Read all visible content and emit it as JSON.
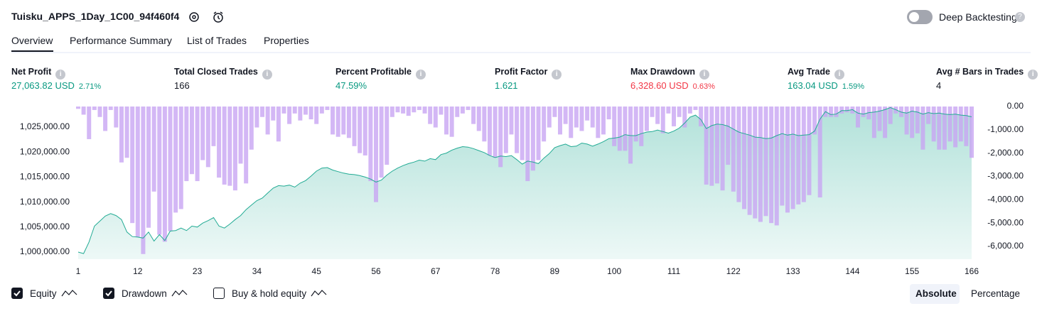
{
  "header": {
    "title": "Tuisku_APPS_1Day_1C00_94f460f4",
    "deep_backtesting": "Deep Backtesting"
  },
  "tabs": [
    "Overview",
    "Performance Summary",
    "List of Trades",
    "Properties"
  ],
  "stats": [
    {
      "label": "Net Profit",
      "value": "27,063.82 USD",
      "percent": "2.71%",
      "color": "#089981"
    },
    {
      "label": "Total Closed Trades",
      "value": "166",
      "color": "#131722"
    },
    {
      "label": "Percent Profitable",
      "value": "47.59%",
      "color": "#089981"
    },
    {
      "label": "Profit Factor",
      "value": "1.621",
      "color": "#089981"
    },
    {
      "label": "Max Drawdown",
      "value": "6,328.60 USD",
      "percent": "0.63%",
      "color": "#f23645"
    },
    {
      "label": "Avg Trade",
      "value": "163.04 USD",
      "percent": "1.59%",
      "color": "#089981"
    },
    {
      "label": "Avg # Bars in Trades",
      "value": "4",
      "color": "#131722"
    }
  ],
  "chart_data": {
    "type": "equity-drawdown",
    "x": [
      1,
      2,
      3,
      4,
      5,
      6,
      7,
      8,
      9,
      10,
      11,
      12,
      13,
      14,
      15,
      16,
      17,
      18,
      19,
      20,
      21,
      22,
      23,
      24,
      25,
      26,
      27,
      28,
      29,
      30,
      31,
      32,
      33,
      34,
      35,
      36,
      37,
      38,
      39,
      40,
      41,
      42,
      43,
      44,
      45,
      46,
      47,
      48,
      49,
      50,
      51,
      52,
      53,
      54,
      55,
      56,
      57,
      58,
      59,
      60,
      61,
      62,
      63,
      64,
      65,
      66,
      67,
      68,
      69,
      70,
      71,
      72,
      73,
      74,
      75,
      76,
      77,
      78,
      79,
      80,
      81,
      82,
      83,
      84,
      85,
      86,
      87,
      88,
      89,
      90,
      91,
      92,
      93,
      94,
      95,
      96,
      97,
      98,
      99,
      100,
      101,
      102,
      103,
      104,
      105,
      106,
      107,
      108,
      109,
      110,
      111,
      112,
      113,
      114,
      115,
      116,
      117,
      118,
      119,
      120,
      121,
      122,
      123,
      124,
      125,
      126,
      127,
      128,
      129,
      130,
      131,
      132,
      133,
      134,
      135,
      136,
      137,
      138,
      139,
      140,
      141,
      142,
      143,
      144,
      145,
      146,
      147,
      148,
      149,
      150,
      151,
      152,
      153,
      154,
      155,
      156,
      157,
      158,
      159,
      160,
      161,
      162,
      163,
      164,
      165,
      166
    ],
    "xlim": [
      1,
      166
    ],
    "xticks": [
      1,
      12,
      23,
      34,
      45,
      56,
      67,
      78,
      89,
      100,
      111,
      122,
      133,
      144,
      155,
      166
    ],
    "ylim": [
      998580,
      1029120
    ],
    "yticks": [
      {
        "value": 1000000,
        "label": "1,000,000.00"
      },
      {
        "value": 1005000,
        "label": "1,005,000.00"
      },
      {
        "value": 1010000,
        "label": "1,010,000.00"
      },
      {
        "value": 1015000,
        "label": "1,015,000.00"
      },
      {
        "value": 1020000,
        "label": "1,020,000.00"
      },
      {
        "value": 1025000,
        "label": "1,025,000.00"
      }
    ],
    "y2lim": [
      -6549,
      0
    ],
    "y2ticks": [
      {
        "value": 0,
        "label": "0.00"
      },
      {
        "value": -1000,
        "label": "-1,000.00"
      },
      {
        "value": -2000,
        "label": "-2,000.00"
      },
      {
        "value": -3000,
        "label": "-3,000.00"
      },
      {
        "value": -4000,
        "label": "-4,000.00"
      },
      {
        "value": -5000,
        "label": "-5,000.00"
      },
      {
        "value": -6000,
        "label": "-6,000.00"
      }
    ],
    "grid": false,
    "series": [
      {
        "name": "Equity",
        "color": "#22ab94",
        "values": [
          1000000,
          999700,
          1002000,
          1005200,
          1006200,
          1007200,
          1007700,
          1007300,
          1006500,
          1004000,
          1003100,
          1003000,
          1002800,
          1004000,
          1002200,
          1003500,
          1002300,
          1004200,
          1004300,
          1004800,
          1004300,
          1005200,
          1005000,
          1005800,
          1006300,
          1006900,
          1005200,
          1004800,
          1005600,
          1006500,
          1007300,
          1008500,
          1009400,
          1010300,
          1010800,
          1011800,
          1012800,
          1013300,
          1013200,
          1013400,
          1013000,
          1013800,
          1014300,
          1015200,
          1016200,
          1016800,
          1016900,
          1016400,
          1016100,
          1015800,
          1015600,
          1015500,
          1015300,
          1015000,
          1014600,
          1014000,
          1014400,
          1015400,
          1016200,
          1016800,
          1017300,
          1017700,
          1018000,
          1018400,
          1018200,
          1018700,
          1018500,
          1019500,
          1019800,
          1020400,
          1020800,
          1021100,
          1021000,
          1020700,
          1020300,
          1019900,
          1019300,
          1018900,
          1019200,
          1019100,
          1019300,
          1018500,
          1017600,
          1018200,
          1018000,
          1017700,
          1018800,
          1019700,
          1020900,
          1021300,
          1021600,
          1021100,
          1021200,
          1021800,
          1021600,
          1021200,
          1021600,
          1022100,
          1022700,
          1022800,
          1023000,
          1023500,
          1023300,
          1023300,
          1023700,
          1024000,
          1024100,
          1024400,
          1024100,
          1023800,
          1024200,
          1024800,
          1025800,
          1027000,
          1027400,
          1026500,
          1024700,
          1025300,
          1025600,
          1025500,
          1025200,
          1024600,
          1024000,
          1023700,
          1023400,
          1023000,
          1022900,
          1022700,
          1022800,
          1023300,
          1023700,
          1023400,
          1023600,
          1023300,
          1023400,
          1023500,
          1024200,
          1026600,
          1028100,
          1027500,
          1027600,
          1028300,
          1028300,
          1028500,
          1027800,
          1027600,
          1027900,
          1028000,
          1028200,
          1028500,
          1028900,
          1028500,
          1028000,
          1027800,
          1028200,
          1028000,
          1027600,
          1027900,
          1027700,
          1027800,
          1027600,
          1027500,
          1027600,
          1027400,
          1027300,
          1027063.82
        ]
      },
      {
        "name": "Drawdown",
        "color": "#c8a5f3",
        "axis": "y2",
        "values": [
          -100,
          -350,
          -1400,
          -150,
          -450,
          -1050,
          -150,
          -900,
          -2400,
          -2200,
          -5000,
          -5600,
          -6328.6,
          -5200,
          -3650,
          -5500,
          -5800,
          -5350,
          -4550,
          -4400,
          -3200,
          -2900,
          -3200,
          -2300,
          -2600,
          -1700,
          -3050,
          -3350,
          -3400,
          -3600,
          -2450,
          -3300,
          -1850,
          -900,
          -450,
          -1200,
          -600,
          -1500,
          -300,
          -750,
          -300,
          -600,
          -350,
          -550,
          -750,
          -300,
          -150,
          -1200,
          -1300,
          -1200,
          -1350,
          -1700,
          -2000,
          -2100,
          -3200,
          -4100,
          -3050,
          -2500,
          -450,
          -250,
          -300,
          -400,
          -250,
          -150,
          -300,
          -750,
          -900,
          -350,
          -1200,
          -1300,
          -450,
          -300,
          -150,
          -750,
          -1050,
          -1500,
          -2100,
          -2200,
          -2600,
          -2000,
          -1200,
          -2000,
          -2300,
          -3200,
          -2750,
          -2300,
          -1500,
          -900,
          -450,
          -1200,
          -750,
          -1350,
          -900,
          -1050,
          -600,
          -900,
          -1350,
          -1200,
          -550,
          -1700,
          -1900,
          -1900,
          -2450,
          -1500,
          -1700,
          -1050,
          -450,
          -750,
          -1150,
          -300,
          -850,
          -450,
          -900,
          -300,
          -150,
          -850,
          -3350,
          -3400,
          -3300,
          -3600,
          -2500,
          -3650,
          -4100,
          -4400,
          -4650,
          -4800,
          -4950,
          -4700,
          -5000,
          -5100,
          -4250,
          -4550,
          -4400,
          -4200,
          -4100,
          -3800,
          -1200,
          -3900,
          -450,
          -450,
          -450,
          -300,
          -250,
          -300,
          -900,
          -450,
          -550,
          -1350,
          -1050,
          -1350,
          -750,
          -300,
          -450,
          -1200,
          -1350,
          -1150,
          -1850,
          -750,
          -1500,
          -1850,
          -1850,
          -1500,
          -1750,
          -1500,
          -1700,
          -2200
        ]
      }
    ]
  },
  "footer": {
    "buy_hold": "Buy & hold equity",
    "modes": [
      "Absolute",
      "Percentage"
    ]
  }
}
